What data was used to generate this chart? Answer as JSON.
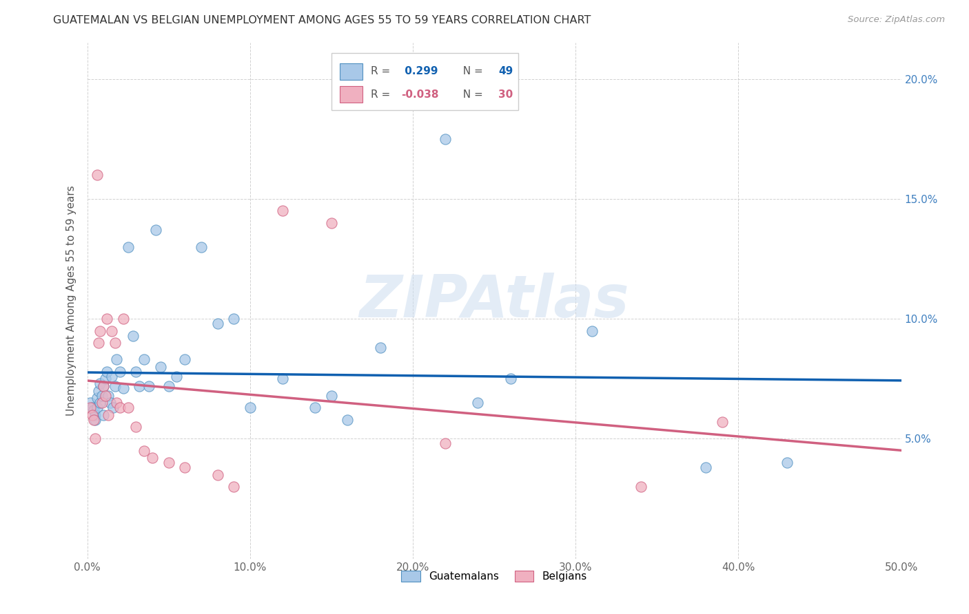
{
  "title": "GUATEMALAN VS BELGIAN UNEMPLOYMENT AMONG AGES 55 TO 59 YEARS CORRELATION CHART",
  "source": "Source: ZipAtlas.com",
  "ylabel": "Unemployment Among Ages 55 to 59 years",
  "x_ticks": [
    0.0,
    0.1,
    0.2,
    0.3,
    0.4,
    0.5
  ],
  "x_tick_labels": [
    "0.0%",
    "10.0%",
    "20.0%",
    "30.0%",
    "40.0%",
    "50.0%"
  ],
  "y_ticks": [
    0.05,
    0.1,
    0.15,
    0.2
  ],
  "y_tick_labels": [
    "5.0%",
    "10.0%",
    "15.0%",
    "20.0%"
  ],
  "xlim": [
    0.0,
    0.5
  ],
  "ylim": [
    0.0,
    0.215
  ],
  "blue_R": "0.299",
  "blue_N": "49",
  "pink_R": "-0.038",
  "pink_N": "30",
  "blue_dot_color": "#a8c8e8",
  "pink_dot_color": "#f0b0c0",
  "blue_dot_edge": "#5090c0",
  "pink_dot_edge": "#d06080",
  "trend_blue": "#1060b0",
  "trend_pink": "#d06080",
  "legend_label_blue": "Guatemalans",
  "legend_label_pink": "Belgians",
  "blue_x": [
    0.002,
    0.003,
    0.004,
    0.005,
    0.005,
    0.006,
    0.006,
    0.007,
    0.008,
    0.008,
    0.009,
    0.01,
    0.01,
    0.011,
    0.012,
    0.013,
    0.014,
    0.015,
    0.016,
    0.017,
    0.018,
    0.02,
    0.022,
    0.025,
    0.028,
    0.03,
    0.032,
    0.035,
    0.038,
    0.042,
    0.045,
    0.05,
    0.055,
    0.06,
    0.07,
    0.08,
    0.09,
    0.1,
    0.12,
    0.14,
    0.15,
    0.16,
    0.18,
    0.22,
    0.24,
    0.26,
    0.31,
    0.38,
    0.43
  ],
  "blue_y": [
    0.065,
    0.063,
    0.062,
    0.06,
    0.058,
    0.067,
    0.063,
    0.07,
    0.073,
    0.065,
    0.068,
    0.072,
    0.06,
    0.075,
    0.078,
    0.068,
    0.065,
    0.076,
    0.063,
    0.072,
    0.083,
    0.078,
    0.071,
    0.13,
    0.093,
    0.078,
    0.072,
    0.083,
    0.072,
    0.137,
    0.08,
    0.072,
    0.076,
    0.083,
    0.13,
    0.098,
    0.1,
    0.063,
    0.075,
    0.063,
    0.068,
    0.058,
    0.088,
    0.175,
    0.065,
    0.075,
    0.095,
    0.038,
    0.04
  ],
  "pink_x": [
    0.002,
    0.003,
    0.004,
    0.005,
    0.006,
    0.007,
    0.008,
    0.009,
    0.01,
    0.011,
    0.012,
    0.013,
    0.015,
    0.017,
    0.018,
    0.02,
    0.022,
    0.025,
    0.03,
    0.035,
    0.04,
    0.05,
    0.06,
    0.08,
    0.09,
    0.12,
    0.15,
    0.22,
    0.34,
    0.39
  ],
  "pink_y": [
    0.063,
    0.06,
    0.058,
    0.05,
    0.16,
    0.09,
    0.095,
    0.065,
    0.072,
    0.068,
    0.1,
    0.06,
    0.095,
    0.09,
    0.065,
    0.063,
    0.1,
    0.063,
    0.055,
    0.045,
    0.042,
    0.04,
    0.038,
    0.035,
    0.03,
    0.145,
    0.14,
    0.048,
    0.03,
    0.057
  ],
  "watermark_text": "ZIPAtlas",
  "watermark_color": "#ccddf0",
  "watermark_alpha": 0.55
}
